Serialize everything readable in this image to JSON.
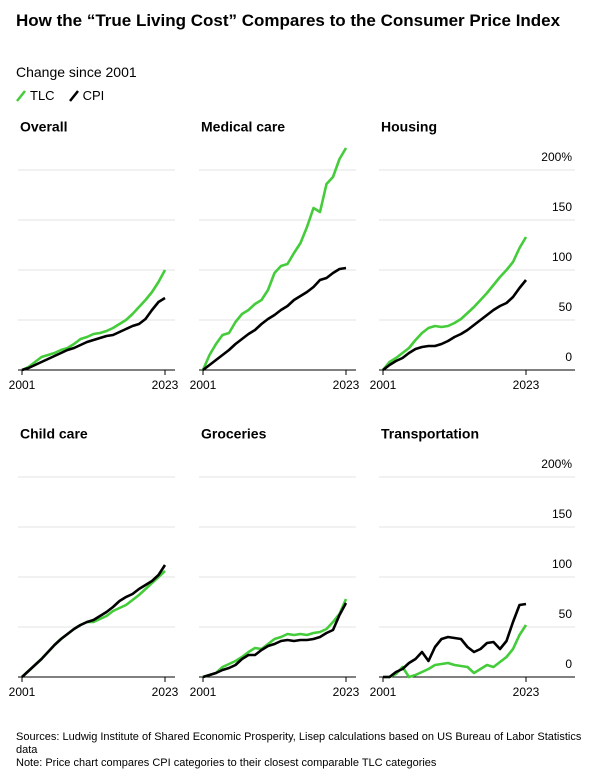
{
  "header": {
    "title": "How the “True Living Cost” Compares to the Consumer Price Index",
    "subtitle": "Change since 2001"
  },
  "footer": {
    "sources": "Sources: Ludwig Institute of Shared Economic Prosperity, Lisep calculations based on US Bureau of Labor Statistics data",
    "note": "Note: Price chart compares CPI categories to their closest comparable TLC categories"
  },
  "chart_data": [
    {
      "type": "line",
      "title": "Overall",
      "x": [
        2001,
        2002,
        2003,
        2004,
        2005,
        2006,
        2007,
        2008,
        2009,
        2010,
        2011,
        2012,
        2013,
        2014,
        2015,
        2016,
        2017,
        2018,
        2019,
        2020,
        2021,
        2022,
        2023
      ],
      "xlim": [
        2001,
        2023
      ],
      "xticks": [
        2001,
        2023
      ],
      "ylim": [
        0,
        225
      ],
      "yticks": [
        0,
        50,
        100,
        150,
        {
          "value": 200,
          "label": "200%"
        }
      ],
      "series": [
        {
          "name": "TLC",
          "color": "#44cc3a",
          "values": [
            0,
            3,
            8,
            13,
            15,
            17,
            20,
            22,
            26,
            31,
            33,
            36,
            37,
            39,
            42,
            46,
            50,
            56,
            63,
            70,
            78,
            88,
            100
          ]
        },
        {
          "name": "CPI",
          "color": "#000000",
          "values": [
            0,
            2,
            5,
            8,
            11,
            14,
            17,
            20,
            22,
            25,
            28,
            30,
            32,
            34,
            35,
            38,
            41,
            44,
            46,
            51,
            60,
            68,
            72
          ]
        }
      ]
    },
    {
      "type": "line",
      "title": "Medical care",
      "x": [
        2001,
        2002,
        2003,
        2004,
        2005,
        2006,
        2007,
        2008,
        2009,
        2010,
        2011,
        2012,
        2013,
        2014,
        2015,
        2016,
        2017,
        2018,
        2019,
        2020,
        2021,
        2022,
        2023
      ],
      "xlim": [
        2001,
        2023
      ],
      "xticks": [
        2001,
        2023
      ],
      "ylim": [
        0,
        225
      ],
      "yticks": [
        0,
        50,
        100,
        150,
        {
          "value": 200,
          "label": "200%"
        }
      ],
      "series": [
        {
          "name": "TLC",
          "color": "#44cc3a",
          "values": [
            0,
            15,
            26,
            35,
            37,
            48,
            56,
            60,
            66,
            70,
            80,
            97,
            104,
            106,
            117,
            127,
            143,
            162,
            158,
            186,
            193,
            211,
            222
          ]
        },
        {
          "name": "CPI",
          "color": "#000000",
          "values": [
            0,
            5,
            10,
            15,
            20,
            26,
            31,
            36,
            40,
            46,
            51,
            55,
            60,
            64,
            70,
            74,
            78,
            83,
            90,
            92,
            97,
            101,
            102
          ]
        }
      ]
    },
    {
      "type": "line",
      "title": "Housing",
      "x": [
        2001,
        2002,
        2003,
        2004,
        2005,
        2006,
        2007,
        2008,
        2009,
        2010,
        2011,
        2012,
        2013,
        2014,
        2015,
        2016,
        2017,
        2018,
        2019,
        2020,
        2021,
        2022,
        2023
      ],
      "xlim": [
        2001,
        2023
      ],
      "xticks": [
        2001,
        2023
      ],
      "ylim": [
        0,
        225
      ],
      "yticks": [
        0,
        50,
        100,
        150,
        {
          "value": 200,
          "label": "200%"
        }
      ],
      "series": [
        {
          "name": "TLC",
          "color": "#44cc3a",
          "values": [
            0,
            8,
            12,
            17,
            22,
            30,
            37,
            42,
            44,
            43,
            44,
            47,
            51,
            57,
            63,
            70,
            77,
            85,
            93,
            100,
            108,
            122,
            133
          ]
        },
        {
          "name": "CPI",
          "color": "#000000",
          "values": [
            0,
            5,
            9,
            12,
            17,
            21,
            23,
            24,
            24,
            26,
            29,
            33,
            36,
            40,
            45,
            50,
            55,
            60,
            64,
            67,
            73,
            82,
            90
          ]
        }
      ]
    },
    {
      "type": "line",
      "title": "Child care",
      "x": [
        2001,
        2002,
        2003,
        2004,
        2005,
        2006,
        2007,
        2008,
        2009,
        2010,
        2011,
        2012,
        2013,
        2014,
        2015,
        2016,
        2017,
        2018,
        2019,
        2020,
        2021,
        2022,
        2023
      ],
      "xlim": [
        2001,
        2023
      ],
      "xticks": [
        2001,
        2023
      ],
      "ylim": [
        0,
        225
      ],
      "yticks": [
        0,
        50,
        100,
        150,
        {
          "value": 200,
          "label": "200%"
        }
      ],
      "series": [
        {
          "name": "TLC",
          "color": "#44cc3a",
          "values": [
            0,
            6,
            12,
            18,
            25,
            32,
            38,
            43,
            48,
            52,
            55,
            55,
            58,
            61,
            66,
            69,
            72,
            77,
            82,
            88,
            94,
            100,
            106
          ]
        },
        {
          "name": "CPI",
          "color": "#000000",
          "values": [
            0,
            6,
            12,
            18,
            25,
            32,
            38,
            43,
            48,
            52,
            55,
            57,
            61,
            65,
            70,
            76,
            80,
            83,
            88,
            92,
            96,
            102,
            112
          ]
        }
      ]
    },
    {
      "type": "line",
      "title": "Groceries",
      "x": [
        2001,
        2002,
        2003,
        2004,
        2005,
        2006,
        2007,
        2008,
        2009,
        2010,
        2011,
        2012,
        2013,
        2014,
        2015,
        2016,
        2017,
        2018,
        2019,
        2020,
        2021,
        2022,
        2023
      ],
      "xlim": [
        2001,
        2023
      ],
      "xticks": [
        2001,
        2023
      ],
      "ylim": [
        0,
        225
      ],
      "yticks": [
        0,
        50,
        100,
        150,
        {
          "value": 200,
          "label": "200%"
        }
      ],
      "series": [
        {
          "name": "TLC",
          "color": "#44cc3a",
          "values": [
            0,
            2,
            4,
            10,
            13,
            16,
            20,
            25,
            29,
            28,
            33,
            38,
            40,
            43,
            42,
            43,
            42,
            44,
            45,
            48,
            55,
            63,
            78
          ]
        },
        {
          "name": "CPI",
          "color": "#000000",
          "values": [
            0,
            2,
            4,
            7,
            9,
            12,
            18,
            22,
            22,
            27,
            31,
            33,
            36,
            37,
            36,
            37,
            37,
            38,
            40,
            44,
            47,
            62,
            74
          ]
        }
      ]
    },
    {
      "type": "line",
      "title": "Transportation",
      "x": [
        2001,
        2002,
        2003,
        2004,
        2005,
        2006,
        2007,
        2008,
        2009,
        2010,
        2011,
        2012,
        2013,
        2014,
        2015,
        2016,
        2017,
        2018,
        2019,
        2020,
        2021,
        2022,
        2023
      ],
      "xlim": [
        2001,
        2023
      ],
      "xticks": [
        2001,
        2023
      ],
      "ylim": [
        0,
        225
      ],
      "yticks": [
        0,
        50,
        100,
        150,
        {
          "value": 200,
          "label": "200%"
        }
      ],
      "series": [
        {
          "name": "TLC",
          "color": "#44cc3a",
          "values": [
            0,
            0,
            3,
            10,
            0,
            2,
            5,
            8,
            12,
            13,
            14,
            12,
            11,
            10,
            4,
            8,
            12,
            10,
            15,
            20,
            28,
            42,
            52
          ]
        },
        {
          "name": "CPI",
          "color": "#000000",
          "values": [
            0,
            0,
            5,
            8,
            14,
            18,
            25,
            16,
            30,
            38,
            40,
            39,
            38,
            30,
            25,
            28,
            34,
            35,
            28,
            36,
            55,
            72,
            73
          ]
        }
      ]
    }
  ]
}
